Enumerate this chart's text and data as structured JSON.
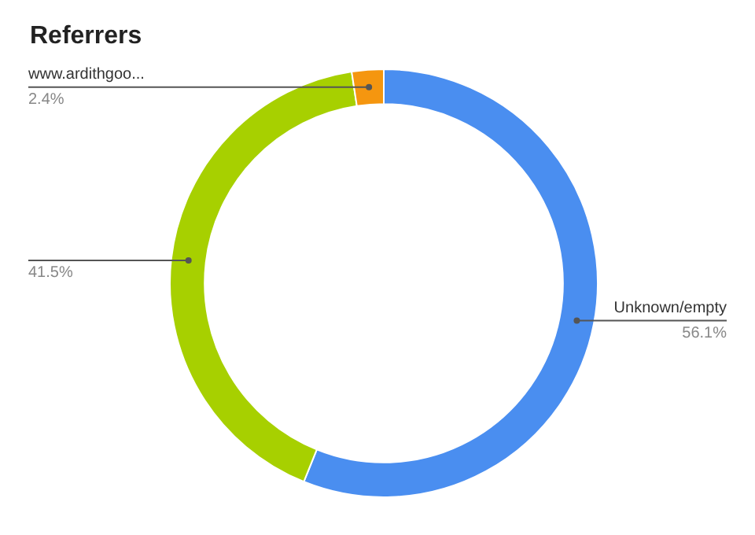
{
  "chart_data": {
    "type": "donut",
    "title": "Referrers",
    "categories": [
      "Unknown/empty",
      null,
      "www.ardithgoo..."
    ],
    "values": [
      56.1,
      41.5,
      2.4
    ],
    "colors": [
      "#4a8ef0",
      "#a7d000",
      "#f5960f"
    ],
    "value_labels": [
      "56.1%",
      "41.5%",
      "2.4%"
    ]
  }
}
